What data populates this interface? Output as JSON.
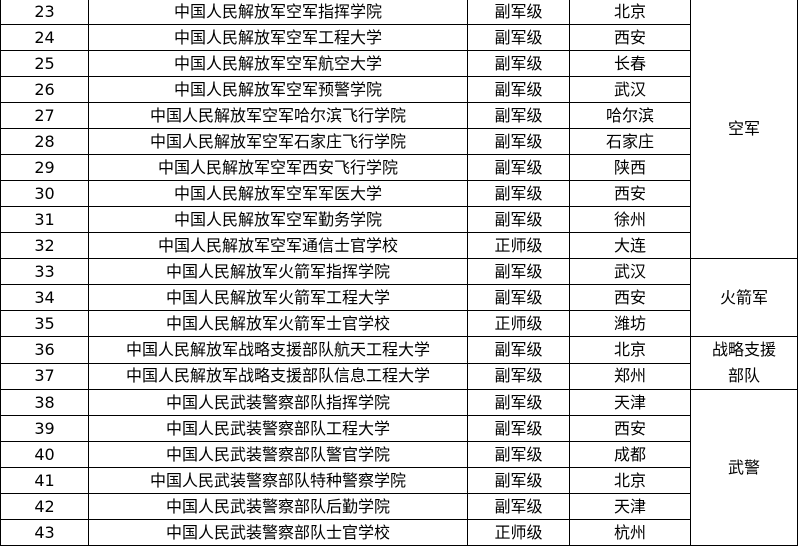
{
  "table": {
    "groups": [
      {
        "branch": "空军",
        "rows": [
          [
            23,
            "中国人民解放军空军指挥学院",
            "副军级",
            "北京"
          ],
          [
            24,
            "中国人民解放军空军工程大学",
            "副军级",
            "西安"
          ],
          [
            25,
            "中国人民解放军空军航空大学",
            "副军级",
            "长春"
          ],
          [
            26,
            "中国人民解放军空军预警学院",
            "副军级",
            "武汉"
          ],
          [
            27,
            "中国人民解放军空军哈尔滨飞行学院",
            "副军级",
            "哈尔滨"
          ],
          [
            28,
            "中国人民解放军空军石家庄飞行学院",
            "副军级",
            "石家庄"
          ],
          [
            29,
            "中国人民解放军空军西安飞行学院",
            "副军级",
            "陕西"
          ],
          [
            30,
            "中国人民解放军空军军医大学",
            "副军级",
            "西安"
          ],
          [
            31,
            "中国人民解放军空军勤务学院",
            "副军级",
            "徐州"
          ],
          [
            32,
            "中国人民解放军空军通信士官学校",
            "正师级",
            "大连"
          ]
        ]
      },
      {
        "branch": "火箭军",
        "rows": [
          [
            33,
            "中国人民解放军火箭军指挥学院",
            "副军级",
            "武汉"
          ],
          [
            34,
            "中国人民解放军火箭军工程大学",
            "副军级",
            "西安"
          ],
          [
            35,
            "中国人民解放军火箭军士官学校",
            "正师级",
            "潍坊"
          ]
        ]
      },
      {
        "branch": "战略支援部队",
        "rows": [
          [
            36,
            "中国人民解放军战略支援部队航天工程大学",
            "副军级",
            "北京"
          ],
          [
            37,
            "中国人民解放军战略支援部队信息工程大学",
            "副军级",
            "郑州"
          ]
        ]
      },
      {
        "branch": "武警",
        "rows": [
          [
            38,
            "中国人民武装警察部队指挥学院",
            "副军级",
            "天津"
          ],
          [
            39,
            "中国人民武装警察部队工程大学",
            "副军级",
            "西安"
          ],
          [
            40,
            "中国人民武装警察部队警官学院",
            "副军级",
            "成都"
          ],
          [
            41,
            "中国人民武装警察部队特种警察学院",
            "副军级",
            "北京"
          ],
          [
            42,
            "中国人民武装警察部队后勤学院",
            "副军级",
            "天津"
          ],
          [
            43,
            "中国人民武装警察部队士官学校",
            "正师级",
            "杭州"
          ]
        ]
      }
    ]
  }
}
